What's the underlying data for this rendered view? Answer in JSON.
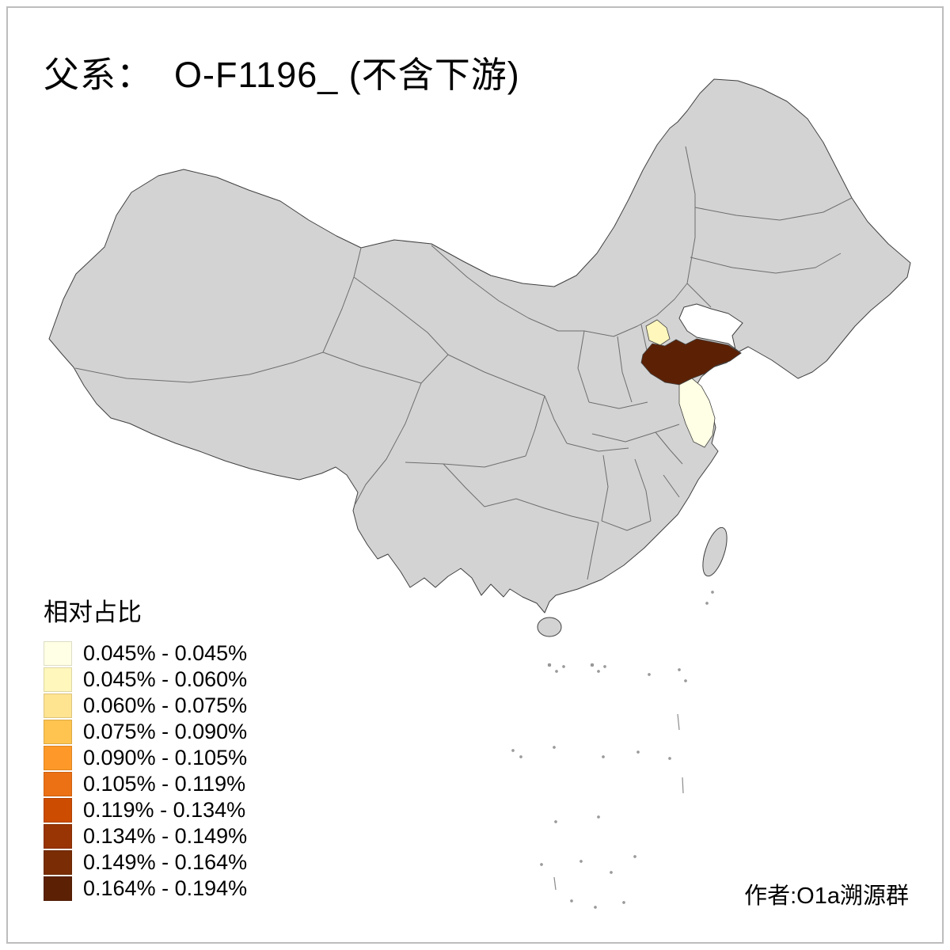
{
  "title": "父系：  O-F1196_ (不含下游)",
  "legend": {
    "title": "相对占比",
    "items": [
      {
        "label": "0.045% - 0.045%",
        "color": "#FFFFE5"
      },
      {
        "label": "0.045% - 0.060%",
        "color": "#FFF7BC"
      },
      {
        "label": "0.060% - 0.075%",
        "color": "#FEE391"
      },
      {
        "label": "0.075% - 0.090%",
        "color": "#FEC44F"
      },
      {
        "label": "0.090% - 0.105%",
        "color": "#FE9929"
      },
      {
        "label": "0.105% - 0.119%",
        "color": "#EC7014"
      },
      {
        "label": "0.119% - 0.134%",
        "color": "#CC4C02"
      },
      {
        "label": "0.134% - 0.149%",
        "color": "#993404"
      },
      {
        "label": "0.149% - 0.164%",
        "color": "#7A2D04"
      },
      {
        "label": "0.164% - 0.194%",
        "color": "#5C2105"
      }
    ]
  },
  "credit": "作者:O1a溯源群",
  "map": {
    "base_fill": "#D3D3D3",
    "border_stroke": "#404040",
    "background": "#FFFFFF",
    "regions": [
      {
        "id": "shandong",
        "color": "#5C2105"
      },
      {
        "id": "jiangsu",
        "color": "#FFFFE5"
      },
      {
        "id": "hebei-patch",
        "color": "#FFF7BC"
      }
    ]
  }
}
